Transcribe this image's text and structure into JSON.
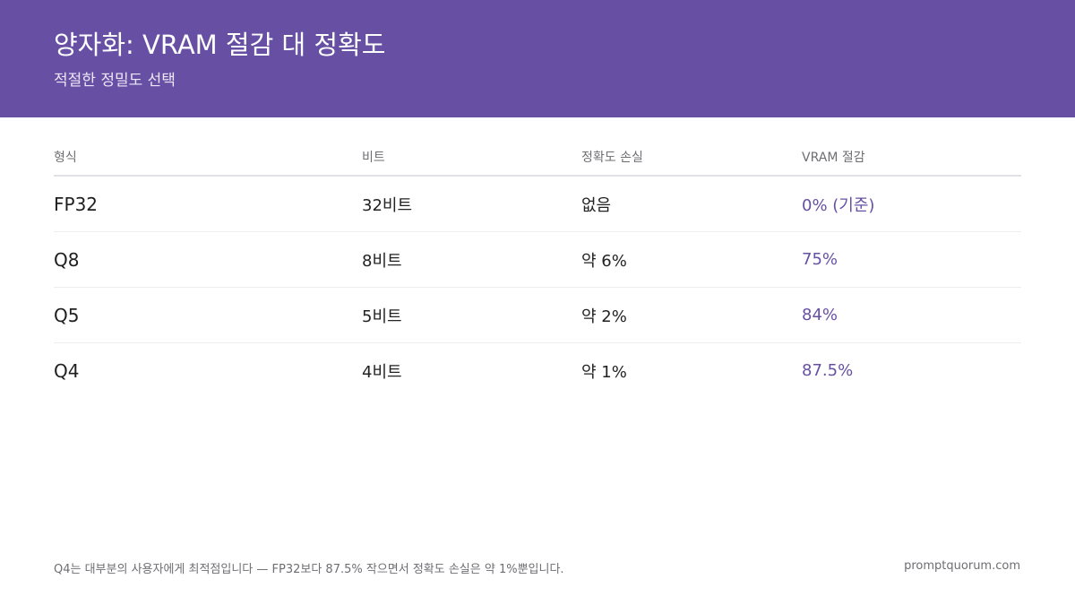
{
  "header": {
    "title": "양자화: VRAM 절감 대 정확도",
    "subtitle": "적절한 정밀도 선택"
  },
  "table": {
    "columns": [
      "형식",
      "비트",
      "정확도 손실",
      "VRAM 절감"
    ],
    "rows": [
      [
        "FP32",
        "32비트",
        "없음",
        "0% (기준)"
      ],
      [
        "Q8",
        "8비트",
        "약 6%",
        "75%"
      ],
      [
        "Q5",
        "5비트",
        "약 2%",
        "84%"
      ],
      [
        "Q4",
        "4비트",
        "약 1%",
        "87.5%"
      ]
    ]
  },
  "footer": {
    "note": "Q4는 대부분의 사용자에게 최적점입니다 — FP32보다 87.5% 작으면서 정확도 손실은 약 1%뿐입니다.",
    "brand": "promptquorum.com"
  },
  "colors": {
    "accent": "#6750a4",
    "header_text": "#ffffff",
    "muted_text": "#6e6e73"
  }
}
